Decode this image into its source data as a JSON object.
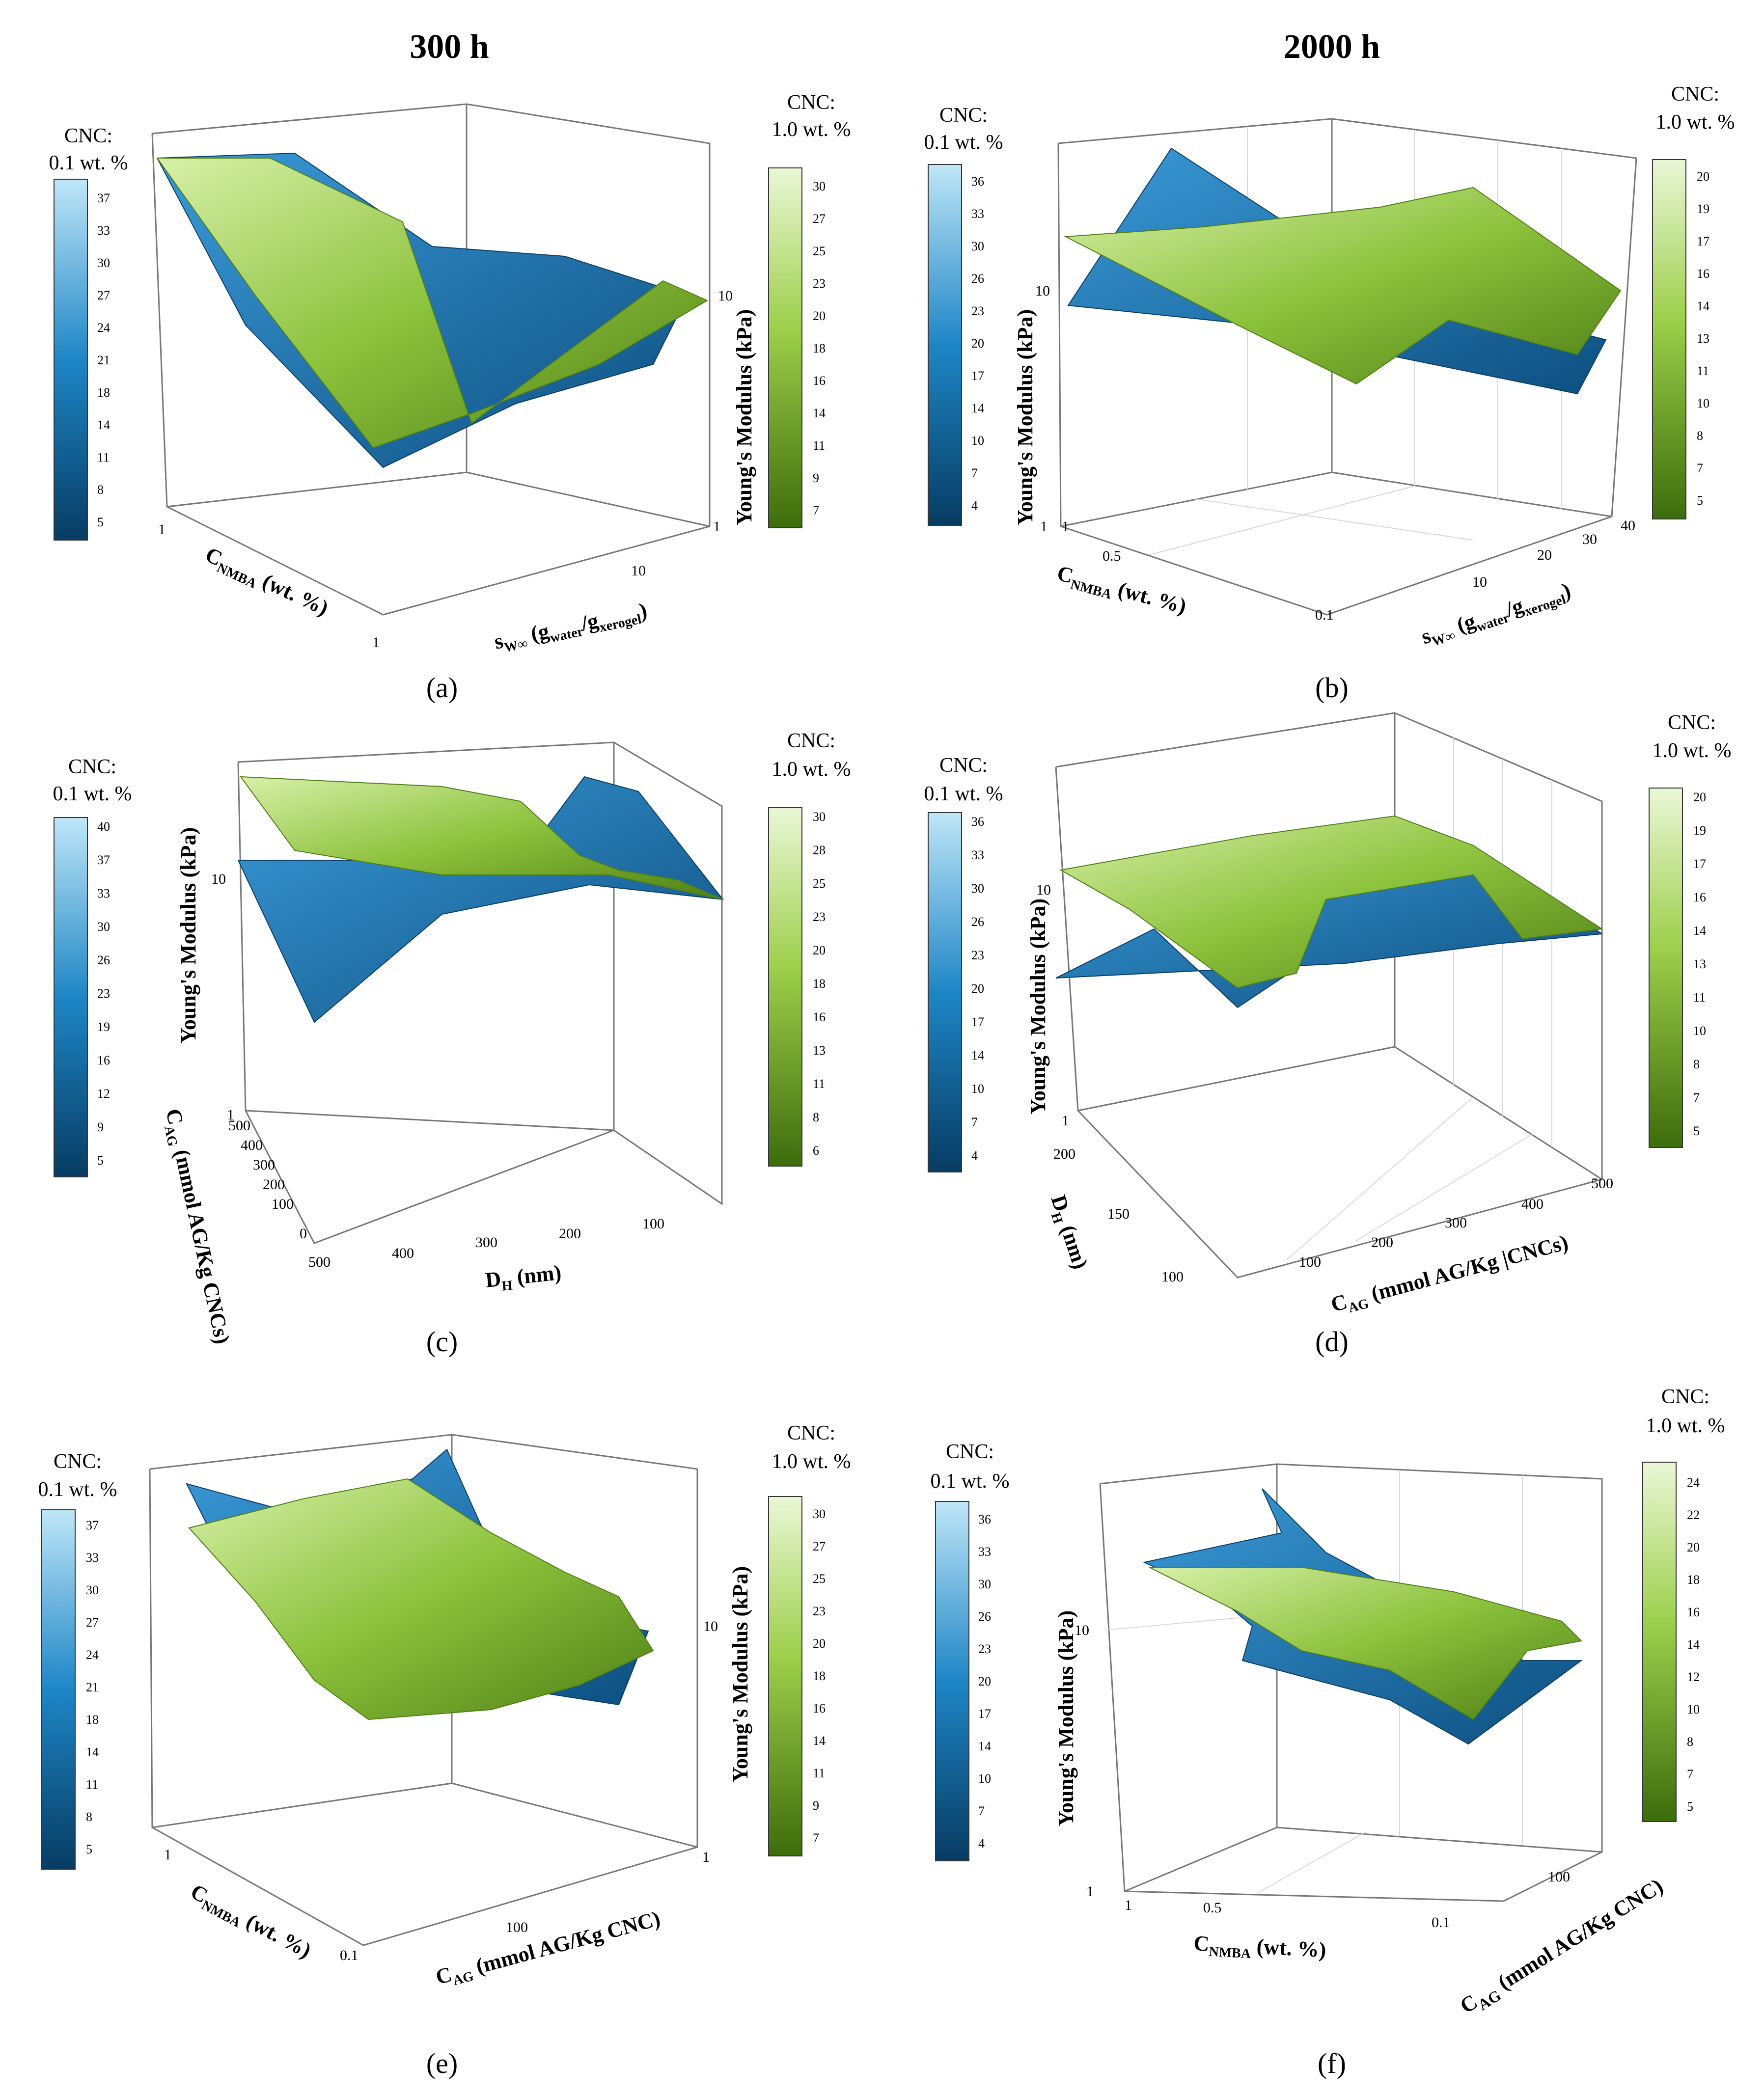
{
  "figure": {
    "column_titles": [
      "300 h",
      "2000 h"
    ],
    "colorbar_titles": {
      "blue": [
        "CNC:",
        "0.1 wt. %"
      ],
      "green": [
        "CNC:",
        "1.0 wt. %"
      ]
    },
    "colors": {
      "blue_light": "#bfe6f8",
      "blue_dark": "#073c63",
      "green_light": "#eaf7d6",
      "green_dark": "#3c6d0c",
      "axis": "#666666",
      "grid": "#d8d8d8"
    }
  },
  "chart_data": [
    {
      "panel": "a",
      "label": "(a)",
      "type": "surface3d",
      "column": "300 h",
      "x_axis": {
        "label_main": "s",
        "label_sub": "W∞",
        "label_rest": " (g",
        "label_sub2": "water",
        "label_mid": "/g",
        "label_sub3": "xerogel",
        "label_end": ")",
        "ticks": [
          "10"
        ]
      },
      "y_axis": {
        "label_main": "C",
        "label_sub": "NMBA",
        "label_rest": " (wt. %)",
        "ticks": [
          "1",
          "1"
        ]
      },
      "z_axis": {
        "label": "Young's Modulus (kPa)",
        "ticks": [
          "10",
          "1"
        ],
        "scale": "log"
      },
      "colorbar_blue": {
        "ticks": [
          "37",
          "33",
          "30",
          "27",
          "24",
          "21",
          "18",
          "14",
          "11",
          "8",
          "5"
        ]
      },
      "colorbar_green": {
        "ticks": [
          "30",
          "27",
          "25",
          "23",
          "20",
          "18",
          "16",
          "14",
          "11",
          "9",
          "7"
        ]
      }
    },
    {
      "panel": "b",
      "label": "(b)",
      "type": "surface3d",
      "column": "2000 h",
      "x_axis": {
        "label_main": "s",
        "label_sub": "W∞",
        "label_rest": " (g",
        "label_sub2": "water",
        "label_mid": "/g",
        "label_sub3": "xerogel",
        "label_end": ")",
        "ticks": [
          "10",
          "20",
          "30",
          "40"
        ]
      },
      "y_axis": {
        "label_main": "C",
        "label_sub": "NMBA",
        "label_rest": " (wt. %)",
        "ticks": [
          "1",
          "0.5",
          "0.1"
        ]
      },
      "z_axis": {
        "label": "Young's Modulus (kPa)",
        "ticks": [
          "10",
          "1"
        ],
        "scale": "log"
      },
      "colorbar_blue": {
        "ticks": [
          "36",
          "33",
          "30",
          "26",
          "23",
          "20",
          "17",
          "14",
          "10",
          "7",
          "4"
        ]
      },
      "colorbar_green": {
        "ticks": [
          "20",
          "19",
          "17",
          "16",
          "14",
          "13",
          "11",
          "10",
          "8",
          "7",
          "5"
        ]
      }
    },
    {
      "panel": "c",
      "label": "(c)",
      "type": "surface3d",
      "column": "300 h",
      "x_axis": {
        "label_main": "D",
        "label_sub": "H",
        "label_rest": " (nm)",
        "ticks": [
          "500",
          "400",
          "300",
          "200",
          "100"
        ]
      },
      "y_axis": {
        "label_main": "C",
        "label_sub": "AG",
        "label_rest": " (mmol AG/Kg CNCs)",
        "ticks": [
          "500",
          "400",
          "300",
          "200",
          "100",
          "0"
        ]
      },
      "z_axis": {
        "label": "Young's Modulus (kPa)",
        "ticks": [
          "10",
          "1"
        ],
        "scale": "log"
      },
      "colorbar_blue": {
        "ticks": [
          "40",
          "37",
          "33",
          "30",
          "26",
          "23",
          "19",
          "16",
          "12",
          "9",
          "5"
        ]
      },
      "colorbar_green": {
        "ticks": [
          "30",
          "28",
          "25",
          "23",
          "20",
          "18",
          "16",
          "13",
          "11",
          "8",
          "6"
        ]
      }
    },
    {
      "panel": "d",
      "label": "(d)",
      "type": "surface3d",
      "column": "2000 h",
      "x_axis": {
        "label_main": "C",
        "label_sub": "AG",
        "label_rest": " (mmol AG/Kg |CNCs)",
        "ticks": [
          "100",
          "200",
          "300",
          "400",
          "500"
        ]
      },
      "y_axis": {
        "label_main": "D",
        "label_sub": "H",
        "label_rest": " (nm)",
        "ticks": [
          "200",
          "150",
          "100"
        ]
      },
      "z_axis": {
        "label": "Young's Modulus (kPa)",
        "ticks": [
          "10",
          "1"
        ],
        "scale": "log"
      },
      "colorbar_blue": {
        "ticks": [
          "36",
          "33",
          "30",
          "26",
          "23",
          "20",
          "17",
          "14",
          "10",
          "7",
          "4"
        ]
      },
      "colorbar_green": {
        "ticks": [
          "20",
          "19",
          "17",
          "16",
          "14",
          "13",
          "11",
          "10",
          "8",
          "7",
          "5"
        ]
      }
    },
    {
      "panel": "e",
      "label": "(e)",
      "type": "surface3d",
      "column": "300 h",
      "x_axis": {
        "label_main": "C",
        "label_sub": "AG",
        "label_rest": " (mmol AG/Kg CNC)",
        "ticks": [
          "100"
        ]
      },
      "y_axis": {
        "label_main": "C",
        "label_sub": "NMBA",
        "label_rest": " (wt. %)",
        "ticks": [
          "1",
          "0.1"
        ]
      },
      "z_axis": {
        "label": "Young's Modulus (kPa)",
        "ticks": [
          "10",
          "1"
        ],
        "scale": "log"
      },
      "colorbar_blue": {
        "ticks": [
          "37",
          "33",
          "30",
          "27",
          "24",
          "21",
          "18",
          "14",
          "11",
          "8",
          "5"
        ]
      },
      "colorbar_green": {
        "ticks": [
          "30",
          "27",
          "25",
          "23",
          "20",
          "18",
          "16",
          "14",
          "11",
          "9",
          "7"
        ]
      }
    },
    {
      "panel": "f",
      "label": "(f)",
      "type": "surface3d",
      "column": "2000 h",
      "x_axis": {
        "label_main": "C",
        "label_sub": "NMBA",
        "label_rest": " (wt. %)",
        "ticks": [
          "1",
          "0.5",
          "0.1"
        ]
      },
      "y_axis": {
        "label_main": "C",
        "label_sub": "AG",
        "label_rest": " (mmol AG/Kg CNC)",
        "ticks": [
          "100"
        ]
      },
      "z_axis": {
        "label": "Young's Modulus (kPa)",
        "ticks": [
          "10",
          "1"
        ],
        "scale": "log"
      },
      "colorbar_blue": {
        "ticks": [
          "36",
          "33",
          "30",
          "26",
          "23",
          "20",
          "17",
          "14",
          "10",
          "7",
          "4"
        ]
      },
      "colorbar_green": {
        "ticks": [
          "24",
          "22",
          "20",
          "18",
          "16",
          "14",
          "12",
          "10",
          "8",
          "7",
          "5"
        ]
      }
    }
  ]
}
